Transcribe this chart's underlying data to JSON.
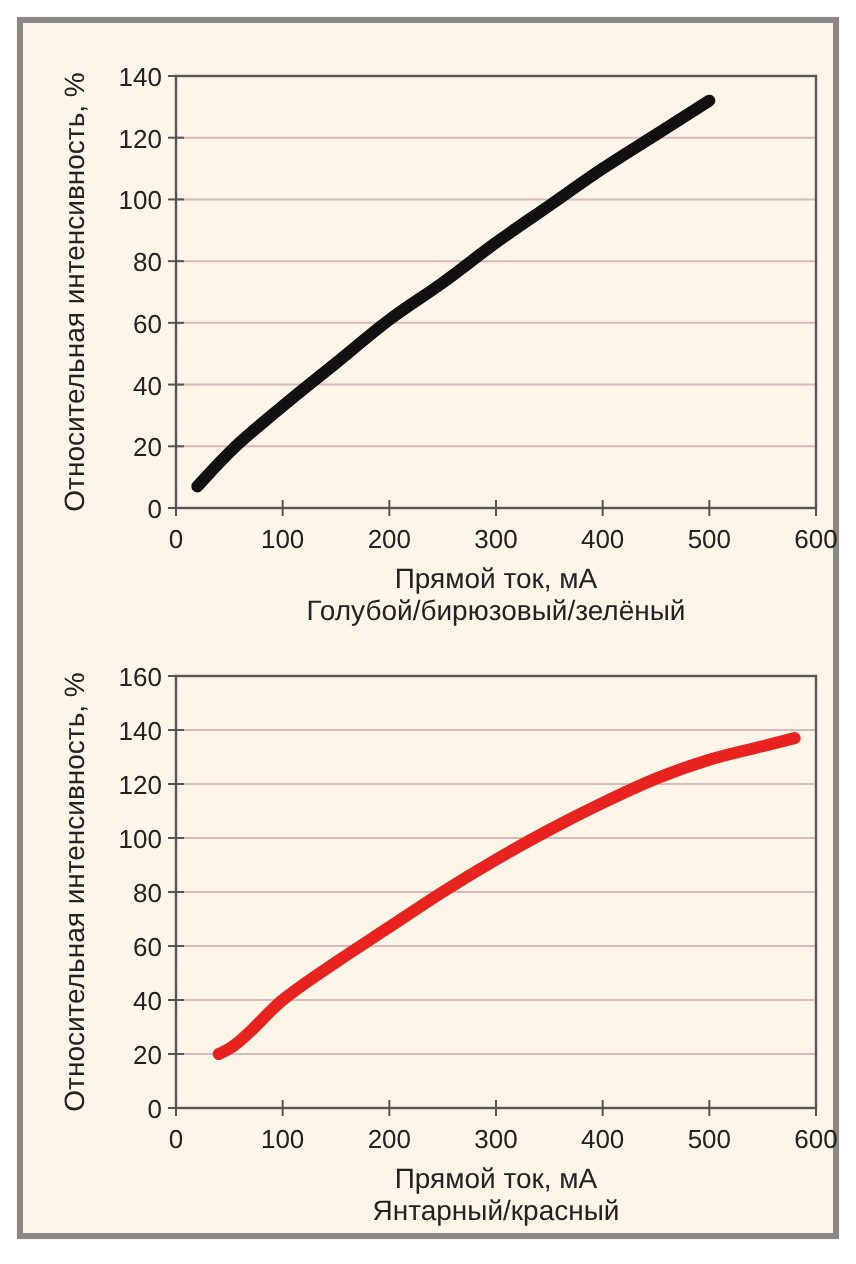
{
  "chart_data": [
    {
      "type": "line",
      "xlabel": "Прямой ток, мА",
      "subtitle": "Голубой/бирюзовый/зелёный",
      "ylabel": "Относительная интенсивность, %",
      "xlim": [
        0,
        600
      ],
      "xticks": [
        0,
        100,
        200,
        300,
        400,
        500,
        600
      ],
      "ylim": [
        0,
        140
      ],
      "yticks": [
        0,
        20,
        40,
        60,
        80,
        100,
        120,
        140
      ],
      "grid": "y",
      "line_style": "solid",
      "marker": "none",
      "series": [
        {
          "color": "#111111",
          "x": [
            20,
            50,
            100,
            150,
            200,
            250,
            300,
            350,
            400,
            450,
            500
          ],
          "values": [
            7,
            18,
            33,
            47,
            61,
            73,
            86,
            98,
            110,
            121,
            132
          ]
        }
      ]
    },
    {
      "type": "line",
      "xlabel": "Прямой ток, мА",
      "subtitle": "Янтарный/красный",
      "ylabel": "Относительная интенсивность, %",
      "xlim": [
        0,
        600
      ],
      "xticks": [
        0,
        100,
        200,
        300,
        400,
        500,
        600
      ],
      "ylim": [
        0,
        160
      ],
      "yticks": [
        0,
        20,
        40,
        60,
        80,
        100,
        120,
        140,
        160
      ],
      "grid": "y",
      "line_style": "solid",
      "marker": "none",
      "series": [
        {
          "color": "#e8231f",
          "x": [
            40,
            50,
            100,
            150,
            200,
            250,
            300,
            350,
            400,
            450,
            500,
            550,
            580
          ],
          "values": [
            20,
            22,
            40,
            54,
            67,
            80,
            92,
            103,
            113,
            122,
            129,
            134,
            137
          ]
        }
      ]
    }
  ]
}
